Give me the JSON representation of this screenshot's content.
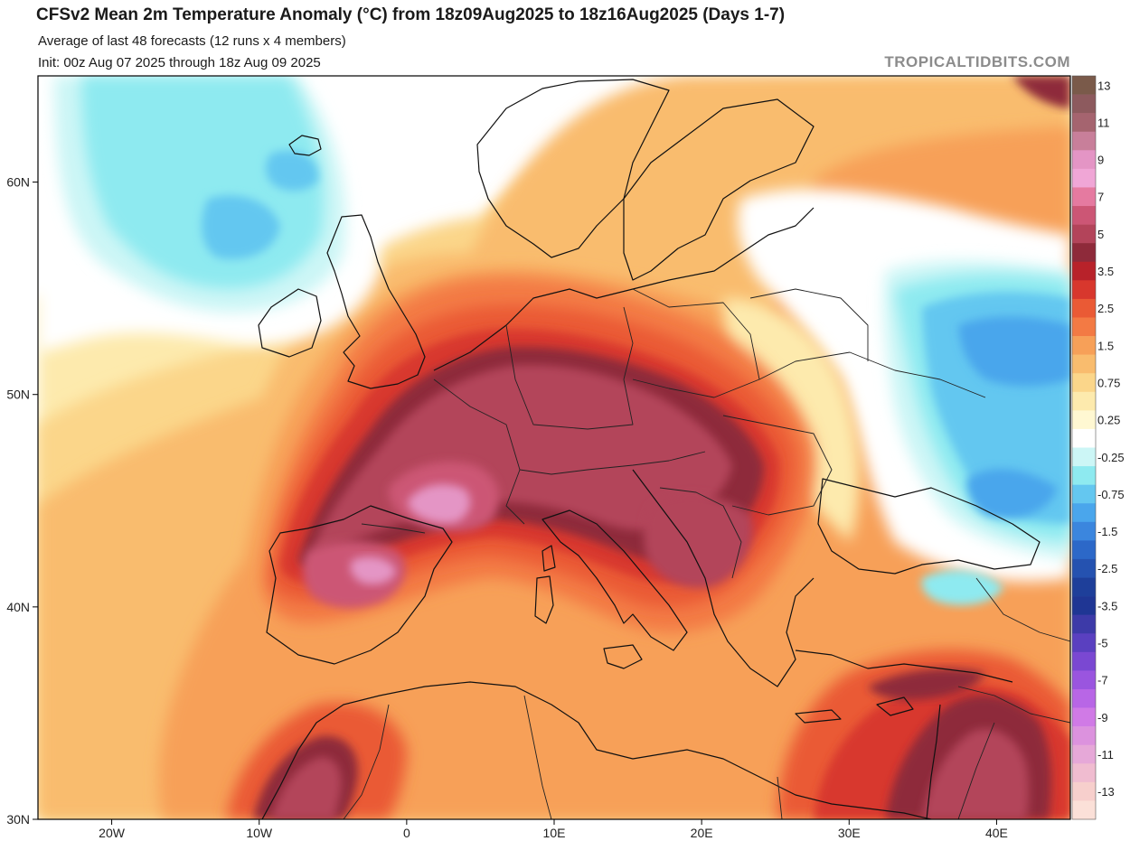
{
  "header": {
    "title": "CFSv2 Mean 2m Temperature Anomaly (°C) from 18z09Aug2025 to 18z16Aug2025 (Days 1-7)",
    "subtitle": "Average of last 48 forecasts (12 runs x 4 members)",
    "init": "Init: 00z Aug 07 2025 through 18z Aug 09 2025",
    "brand": "TROPICALTIDBITS.COM"
  },
  "map": {
    "lon_range": [
      -25,
      45
    ],
    "lat_range": [
      30,
      65
    ],
    "lat_ticks": [
      {
        "lat": 30,
        "label": "30N"
      },
      {
        "lat": 40,
        "label": "40N"
      },
      {
        "lat": 50,
        "label": "50N"
      },
      {
        "lat": 60,
        "label": "60N"
      }
    ],
    "lon_ticks": [
      {
        "lon": -20,
        "label": "20W"
      },
      {
        "lon": -10,
        "label": "10W"
      },
      {
        "lon": 0,
        "label": "0"
      },
      {
        "lon": 10,
        "label": "10E"
      },
      {
        "lon": 20,
        "label": "20E"
      },
      {
        "lon": 30,
        "label": "30E"
      },
      {
        "lon": 40,
        "label": "40E"
      }
    ],
    "land_color": "#ffffff",
    "ocean_color": "#ffffff"
  },
  "colorbar": {
    "bins": [
      {
        "color": "#7a5a4a",
        "label": "13"
      },
      {
        "color": "#8d5a5e",
        "label": ""
      },
      {
        "color": "#a5646f",
        "label": "11"
      },
      {
        "color": "#c87f9a",
        "label": ""
      },
      {
        "color": "#e495c5",
        "label": "9"
      },
      {
        "color": "#f0a6d6",
        "label": ""
      },
      {
        "color": "#e57aa0",
        "label": "7"
      },
      {
        "color": "#cc5675",
        "label": ""
      },
      {
        "color": "#b3445a",
        "label": "5"
      },
      {
        "color": "#8e2a3a",
        "label": ""
      },
      {
        "color": "#b8222a",
        "label": "3.5"
      },
      {
        "color": "#d8372d",
        "label": ""
      },
      {
        "color": "#ea5a35",
        "label": "2.5"
      },
      {
        "color": "#f37a44",
        "label": ""
      },
      {
        "color": "#f7a058",
        "label": "1.5"
      },
      {
        "color": "#f9bc6e",
        "label": ""
      },
      {
        "color": "#fbd68a",
        "label": "0.75"
      },
      {
        "color": "#fdeaad",
        "label": ""
      },
      {
        "color": "#fff8d2",
        "label": "0.25"
      },
      {
        "color": "#ffffff",
        "label": ""
      },
      {
        "color": "#ccf6f6",
        "label": "-0.25"
      },
      {
        "color": "#8eeaf0",
        "label": ""
      },
      {
        "color": "#64c7f0",
        "label": "-0.75"
      },
      {
        "color": "#4aa6ec",
        "label": ""
      },
      {
        "color": "#3b86de",
        "label": "-1.5"
      },
      {
        "color": "#2c68c8",
        "label": ""
      },
      {
        "color": "#2552b0",
        "label": "-2.5"
      },
      {
        "color": "#1e3f9a",
        "label": ""
      },
      {
        "color": "#1f3694",
        "label": "-3.5"
      },
      {
        "color": "#3d3aa8",
        "label": ""
      },
      {
        "color": "#5a40c0",
        "label": "-5"
      },
      {
        "color": "#7a48d2",
        "label": ""
      },
      {
        "color": "#9a55df",
        "label": "-7"
      },
      {
        "color": "#b866e6",
        "label": ""
      },
      {
        "color": "#d07ae6",
        "label": "-9"
      },
      {
        "color": "#dc92de",
        "label": ""
      },
      {
        "color": "#e6a8d8",
        "label": "-11"
      },
      {
        "color": "#f0bcd0",
        "label": ""
      },
      {
        "color": "#f7cfcc",
        "label": "-13"
      },
      {
        "color": "#fbe0d8",
        "label": ""
      }
    ]
  }
}
